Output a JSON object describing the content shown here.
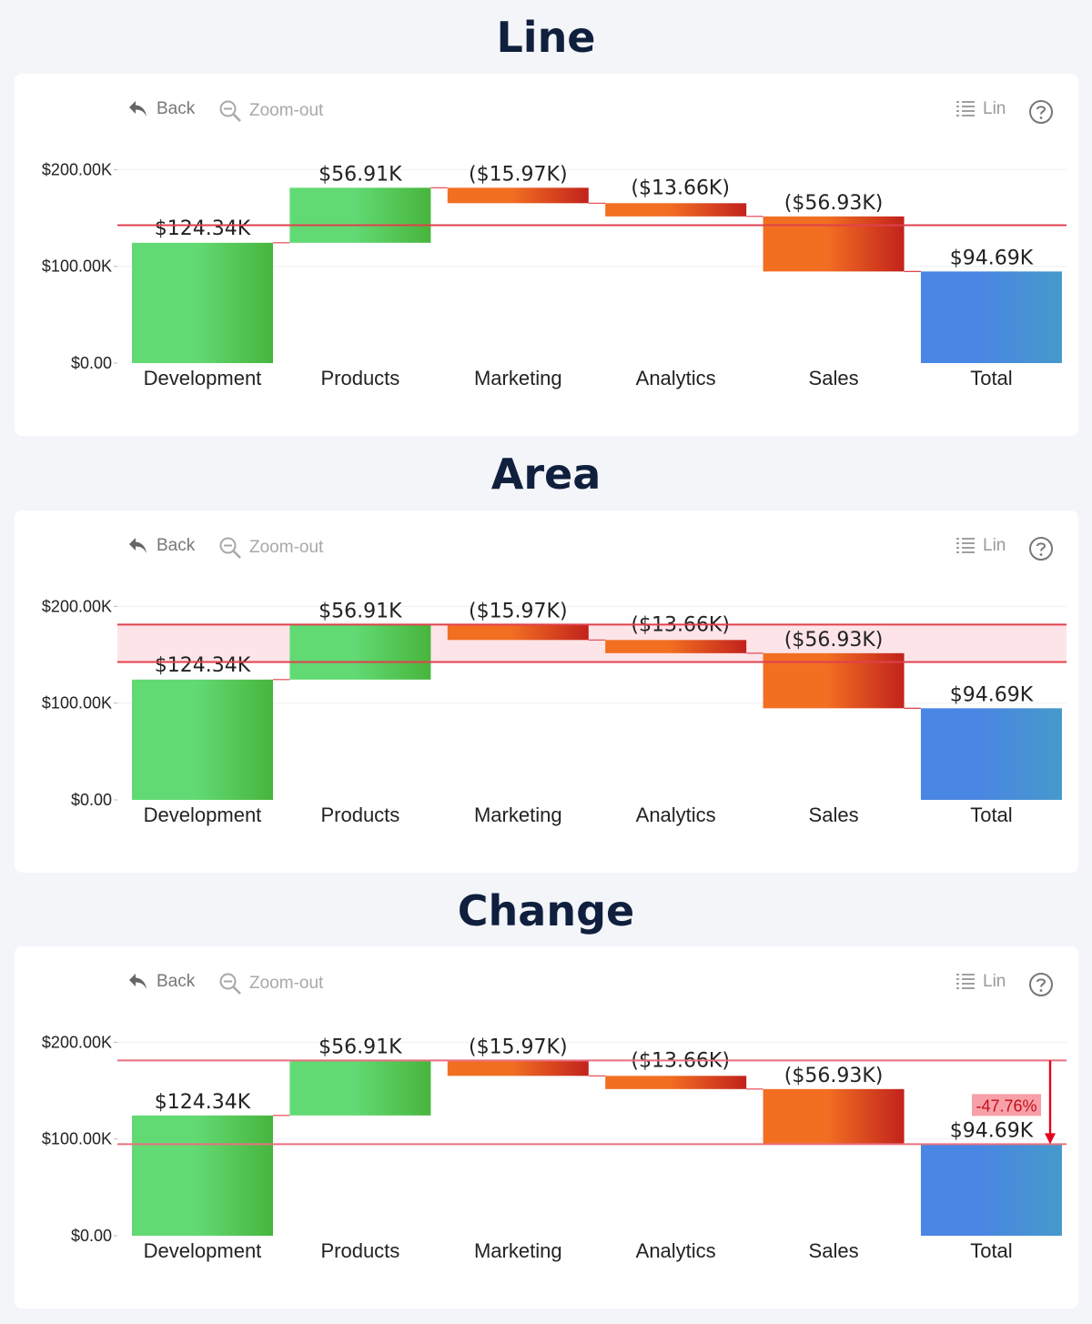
{
  "colors": {
    "increase": [
      "#62da74",
      "#47b53c"
    ],
    "decrease": [
      "#f26f22",
      "#c2221c"
    ],
    "total": [
      "#4a86e3",
      "#4599cc"
    ],
    "threshold": "#e0404e",
    "area_fill": "#fde4e8",
    "badge_bg": "#f8a0a8"
  },
  "toolbar": {
    "back_label": "Back",
    "zoom_label": "Zoom-out",
    "legend_label": "Lin",
    "back_icon": "undo-arrow-icon",
    "zoom_icon": "zoom-out-icon",
    "legend_icon": "list-icon",
    "help_icon": "help-circle-icon"
  },
  "chart_data": [
    {
      "type": "waterfall",
      "title": "Line",
      "categories": [
        "Development",
        "Products",
        "Marketing",
        "Analytics",
        "Sales",
        "Total"
      ],
      "values": [
        124.34,
        56.91,
        -15.97,
        -13.66,
        -56.93,
        94.69
      ],
      "kinds": [
        "increase",
        "increase",
        "decrease",
        "decrease",
        "decrease",
        "total"
      ],
      "data_labels": [
        "$124.34K",
        "$56.91K",
        "($15.97K)",
        "($13.66K)",
        "($56.93K)",
        "$94.69K"
      ],
      "y_ticks": [
        0,
        100,
        200
      ],
      "y_tick_labels": [
        "$0.00",
        "$100.00K",
        "$200.00K"
      ],
      "ylim": [
        0,
        200
      ],
      "overlay": {
        "mode": "line",
        "value": 142.5
      }
    },
    {
      "type": "waterfall",
      "title": "Area",
      "categories": [
        "Development",
        "Products",
        "Marketing",
        "Analytics",
        "Sales",
        "Total"
      ],
      "values": [
        124.34,
        56.91,
        -15.97,
        -13.66,
        -56.93,
        94.69
      ],
      "kinds": [
        "increase",
        "increase",
        "decrease",
        "decrease",
        "decrease",
        "total"
      ],
      "data_labels": [
        "$124.34K",
        "$56.91K",
        "($15.97K)",
        "($13.66K)",
        "($56.93K)",
        "$94.69K"
      ],
      "y_ticks": [
        0,
        100,
        200
      ],
      "y_tick_labels": [
        "$0.00",
        "$100.00K",
        "$200.00K"
      ],
      "ylim": [
        0,
        200
      ],
      "overlay": {
        "mode": "area",
        "from": 142.5,
        "to": 181.25
      }
    },
    {
      "type": "waterfall",
      "title": "Change",
      "categories": [
        "Development",
        "Products",
        "Marketing",
        "Analytics",
        "Sales",
        "Total"
      ],
      "values": [
        124.34,
        56.91,
        -15.97,
        -13.66,
        -56.93,
        94.69
      ],
      "kinds": [
        "increase",
        "increase",
        "decrease",
        "decrease",
        "decrease",
        "total"
      ],
      "data_labels": [
        "$124.34K",
        "$56.91K",
        "($15.97K)",
        "($13.66K)",
        "($56.93K)",
        "$94.69K"
      ],
      "y_ticks": [
        0,
        100,
        200
      ],
      "y_tick_labels": [
        "$0.00",
        "$100.00K",
        "$200.00K"
      ],
      "ylim": [
        0,
        200
      ],
      "overlay": {
        "mode": "change",
        "from": 181.25,
        "to": 94.69,
        "label": "-47.76%"
      }
    }
  ]
}
